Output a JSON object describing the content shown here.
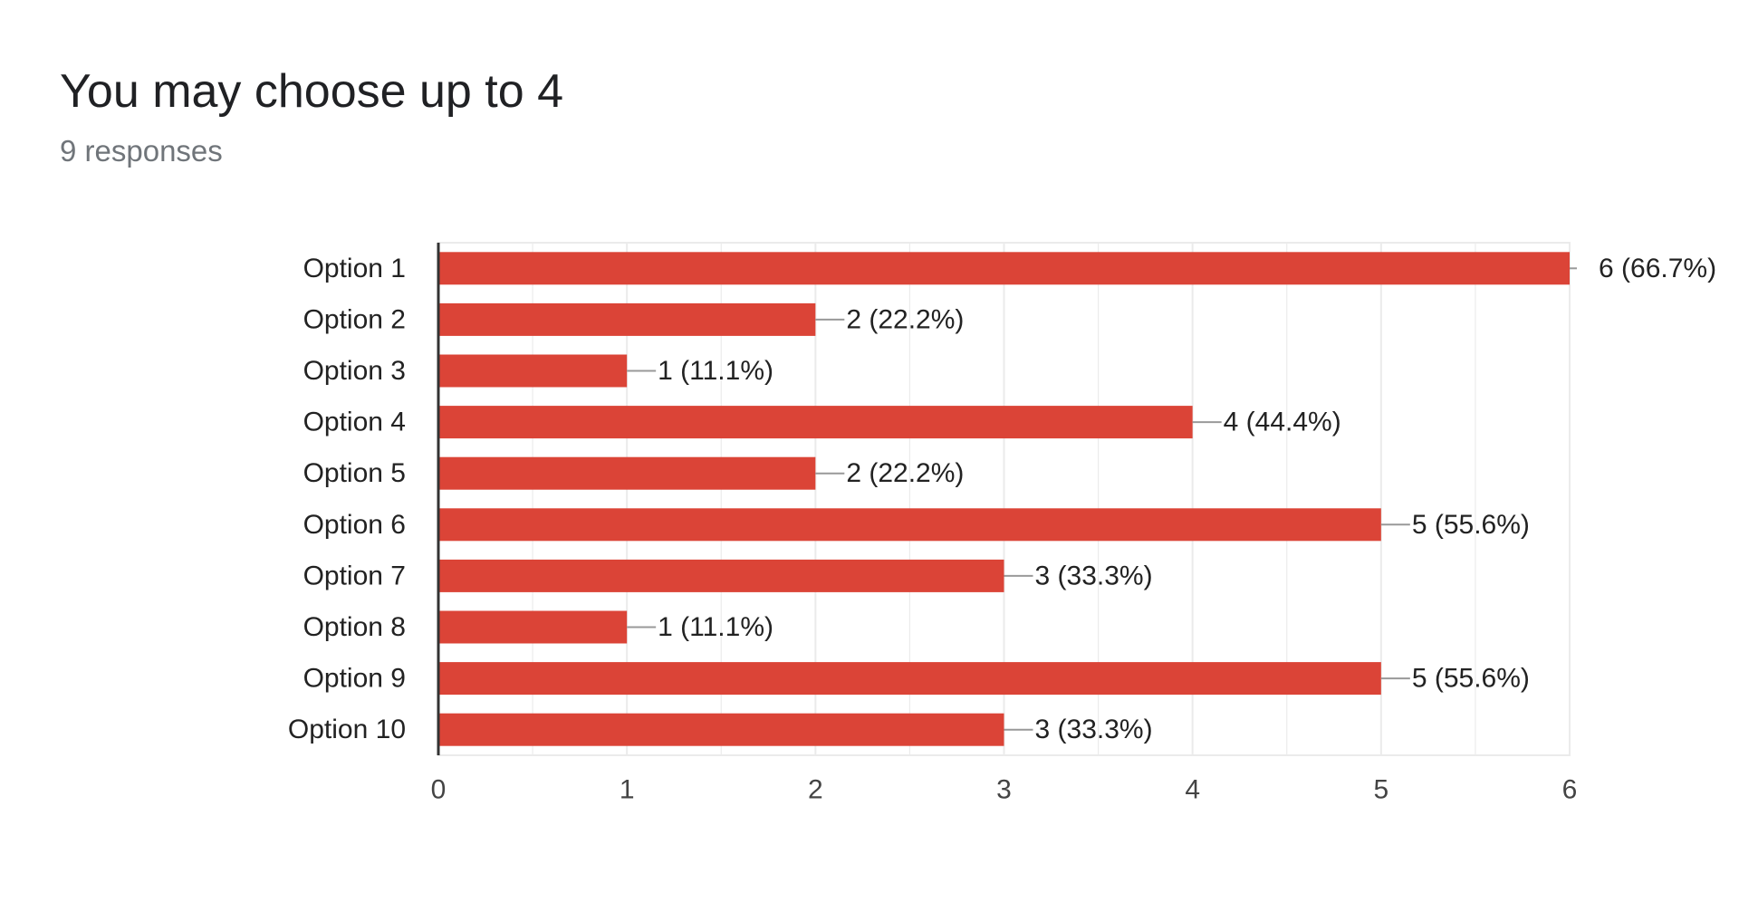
{
  "header": {
    "title": "You may choose up to 4",
    "subtitle": "9 responses"
  },
  "colors": {
    "bar": "#db4437",
    "grid": "#ebebeb",
    "axis": "#333333",
    "leader": "#999999"
  },
  "chart_data": {
    "type": "bar",
    "orientation": "horizontal",
    "categories": [
      "Option 1",
      "Option 2",
      "Option 3",
      "Option 4",
      "Option 5",
      "Option 6",
      "Option 7",
      "Option 8",
      "Option 9",
      "Option 10"
    ],
    "values": [
      6,
      2,
      1,
      4,
      2,
      5,
      3,
      1,
      5,
      3
    ],
    "data_labels": [
      "6 (66.7%)",
      "2 (22.2%)",
      "1 (11.1%)",
      "4 (44.4%)",
      "2 (22.2%)",
      "5 (55.6%)",
      "3 (33.3%)",
      "1 (11.1%)",
      "5 (55.6%)",
      "3 (33.3%)"
    ],
    "x_ticks": [
      "0",
      "1",
      "2",
      "3",
      "4",
      "5",
      "6"
    ],
    "xlim": [
      0,
      6
    ],
    "grid": true,
    "legend": "none"
  }
}
